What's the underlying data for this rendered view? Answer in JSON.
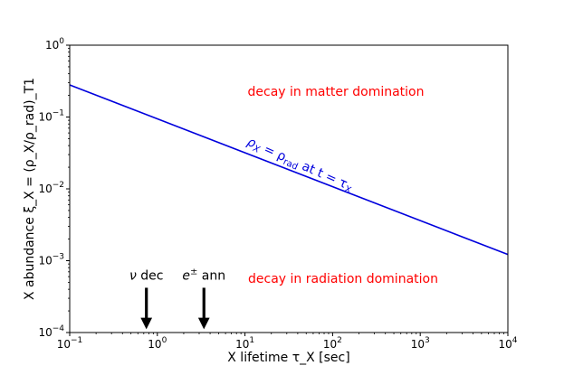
{
  "chart_data": {
    "type": "line",
    "x_scale": "log",
    "y_scale": "log",
    "xlim": [
      0.1,
      10000
    ],
    "ylim": [
      0.0001,
      1
    ],
    "xlabel": "X lifetime  τ_X [sec]",
    "ylabel": "X abundance  ξ_X = (ρ_X/ρ_rad)_T1",
    "x_ticks": [
      {
        "value": 0.1,
        "base": "10",
        "exp": "−1"
      },
      {
        "value": 1,
        "base": "10",
        "exp": "0"
      },
      {
        "value": 10,
        "base": "10",
        "exp": "1"
      },
      {
        "value": 100,
        "base": "10",
        "exp": "2"
      },
      {
        "value": 1000,
        "base": "10",
        "exp": "3"
      },
      {
        "value": 10000,
        "base": "10",
        "exp": "4"
      }
    ],
    "y_ticks": [
      {
        "value": 0.0001,
        "base": "10",
        "exp": "−4"
      },
      {
        "value": 0.001,
        "base": "10",
        "exp": "−3"
      },
      {
        "value": 0.01,
        "base": "10",
        "exp": "−2"
      },
      {
        "value": 0.1,
        "base": "10",
        "exp": "−1"
      },
      {
        "value": 1,
        "base": "10",
        "exp": "0"
      }
    ],
    "series": [
      {
        "name": "ρ_X = ρ_rad at t = τ_X",
        "color": "#0000dd",
        "x": [
          0.1,
          10000
        ],
        "y": [
          0.28,
          0.00122
        ]
      }
    ],
    "annotations": {
      "matter_region": "decay in matter domination",
      "radiation_region": "decay in radiation domination",
      "line_label": {
        "p1": "ρ",
        "s1": "X",
        "p2": " = ρ",
        "s2": "rad",
        "p3": "  at  t = τ",
        "s3": "X"
      },
      "region_color": "#ff0000"
    },
    "markers": [
      {
        "label_sym": "ν",
        "label_text": " dec",
        "x": 0.75,
        "y_top": 0.00042,
        "y_bottom": 0.0001
      },
      {
        "label_sym": "e",
        "label_sup": "±",
        "label_text": " ann",
        "x": 3.4,
        "y_top": 0.00042,
        "y_bottom": 0.0001
      }
    ]
  }
}
